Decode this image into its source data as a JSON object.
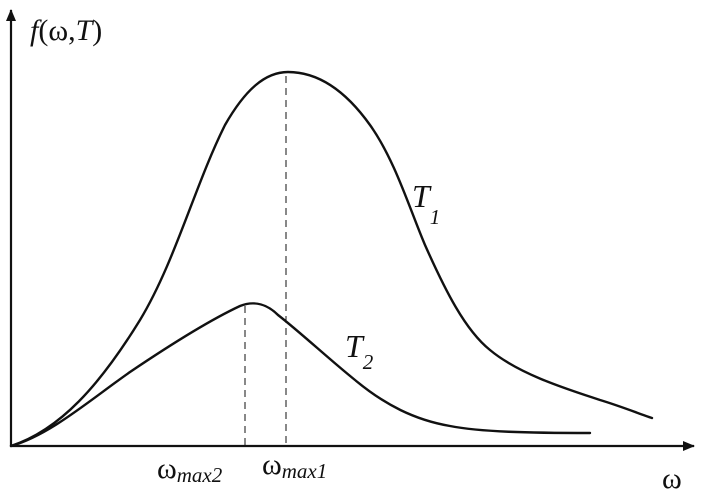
{
  "y_axis_label": {
    "func": "f",
    "open": "(",
    "var1": "ω",
    "comma": ",",
    "var2": "T",
    "close": ")"
  },
  "x_axis_label": "ω",
  "curves": [
    {
      "main": "T",
      "sub": "1"
    },
    {
      "main": "T",
      "sub": "2"
    }
  ],
  "peak_markers": [
    {
      "main": "ω",
      "sub": "max2"
    },
    {
      "main": "ω",
      "sub": "max1"
    }
  ]
}
